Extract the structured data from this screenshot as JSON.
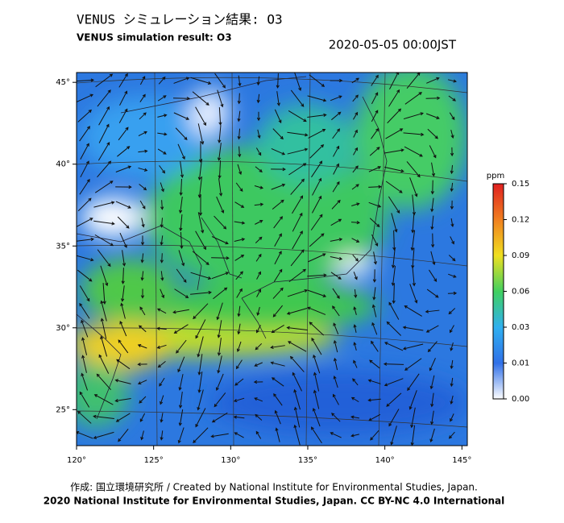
{
  "header": {
    "title": "VENUS シミュレーション結果: O3",
    "subtitle": "VENUS simulation result: O3",
    "datetime": "2020-05-05 00:00JST"
  },
  "map": {
    "xlim": [
      120,
      145.35
    ],
    "ylim": [
      22.8,
      45.6
    ],
    "xticks": [
      {
        "value": 120,
        "label": "120°"
      },
      {
        "value": 125,
        "label": "125°"
      },
      {
        "value": 130,
        "label": "130°"
      },
      {
        "value": 135,
        "label": "135°"
      },
      {
        "value": 140,
        "label": "140°"
      },
      {
        "value": 145,
        "label": "145°"
      }
    ],
    "yticks": [
      {
        "value": 25,
        "label": "25°"
      },
      {
        "value": 30,
        "label": "30°"
      },
      {
        "value": 35,
        "label": "35°"
      },
      {
        "value": 40,
        "label": "40°"
      },
      {
        "value": 45,
        "label": "45°"
      }
    ]
  },
  "colorbar": {
    "unit": "ppm",
    "ticks": [
      {
        "value": 0,
        "label": "0.00"
      },
      0.01,
      0.03,
      0.06,
      0.09,
      0.12,
      0.15
    ]
  },
  "footer": {
    "credit": "作成: 国立環境研究所 / Created by National Institute for Environmental Studies, Japan.",
    "license": "2020 National Institute for Environmental Studies, Japan. CC BY-NC 4.0 International"
  }
}
